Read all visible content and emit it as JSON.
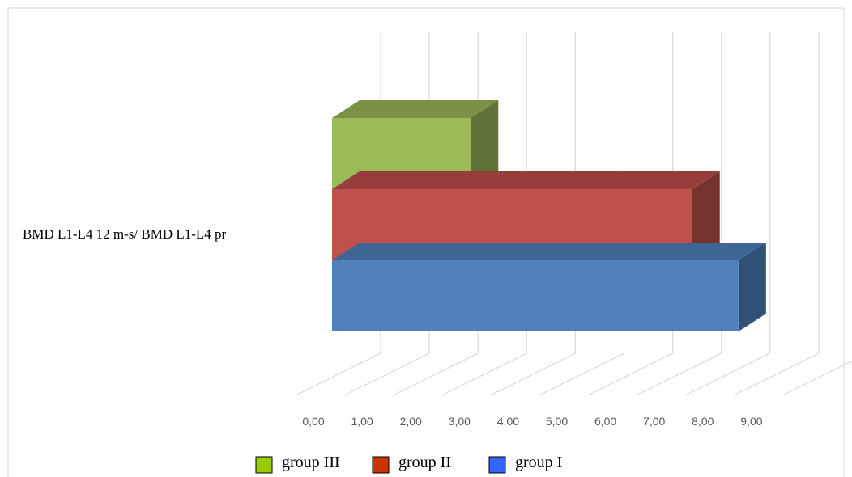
{
  "chart_data": {
    "type": "bar",
    "orientation": "horizontal",
    "style": "3d-clustered",
    "categories": [
      "BMD L1-L4 12 m-s/ BMD L1-L4 pr"
    ],
    "series": [
      {
        "name": "group I",
        "values": [
          8.35
        ],
        "color": "#4F81BD",
        "legend_color": "#3366FF"
      },
      {
        "name": "group II",
        "values": [
          7.4
        ],
        "color": "#C0504D",
        "legend_color": "#CC3300"
      },
      {
        "name": "group III",
        "values": [
          2.85
        ],
        "color": "#9BBB59",
        "legend_color": "#99CC00"
      }
    ],
    "xlim": [
      0,
      10
    ],
    "x_ticks": [
      "0,00",
      "1,00",
      "2,00",
      "3,00",
      "4,00",
      "5,00",
      "6,00",
      "7,00",
      "8,00",
      "9,00"
    ],
    "grid": true,
    "legend_position": "bottom",
    "legend_order": [
      "group III",
      "group II",
      "group I"
    ]
  }
}
